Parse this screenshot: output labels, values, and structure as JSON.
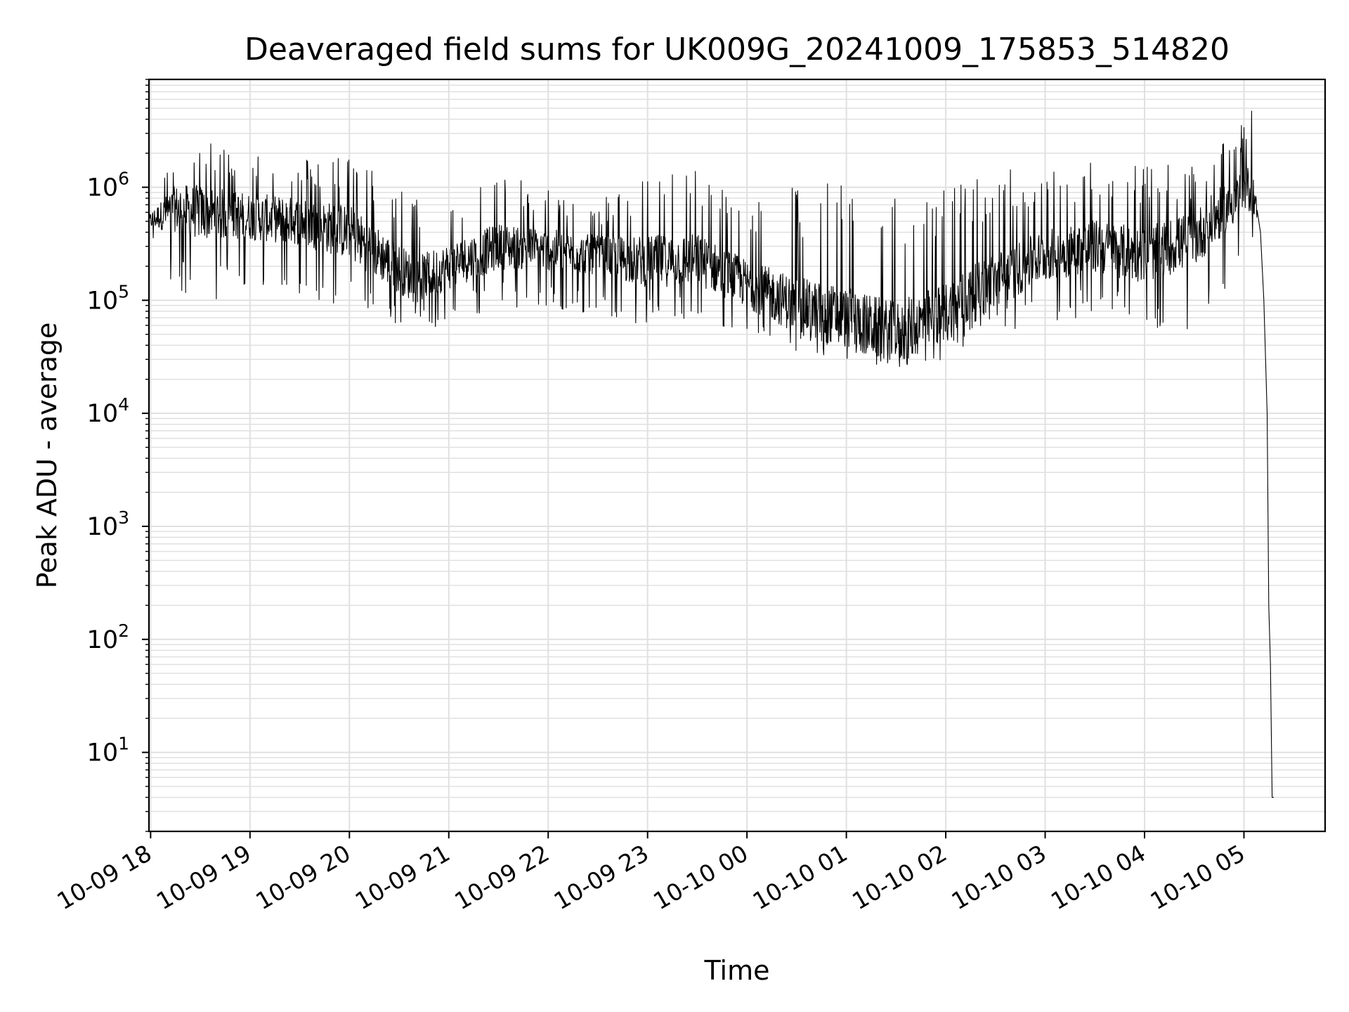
{
  "chart_data": {
    "type": "line",
    "title": "Deaveraged field sums for UK009G_20241009_175853_514820",
    "xlabel": "Time",
    "ylabel": "Peak ADU - average",
    "yscale": "log",
    "ylim": [
      2,
      9000000
    ],
    "xlim": [
      "2024-10-09T17:59:00",
      "2024-10-10T05:49:00"
    ],
    "grid": "on (major and minor)",
    "line_color": "#000000",
    "grid_color": "#e0e0e0",
    "x_ticks": [
      {
        "time": "2024-10-09T18:00:00",
        "label": "10-09 18"
      },
      {
        "time": "2024-10-09T19:00:00",
        "label": "10-09 19"
      },
      {
        "time": "2024-10-09T20:00:00",
        "label": "10-09 20"
      },
      {
        "time": "2024-10-09T21:00:00",
        "label": "10-09 21"
      },
      {
        "time": "2024-10-09T22:00:00",
        "label": "10-09 22"
      },
      {
        "time": "2024-10-09T23:00:00",
        "label": "10-09 23"
      },
      {
        "time": "2024-10-10T00:00:00",
        "label": "10-10 00"
      },
      {
        "time": "2024-10-10T01:00:00",
        "label": "10-10 01"
      },
      {
        "time": "2024-10-10T02:00:00",
        "label": "10-10 02"
      },
      {
        "time": "2024-10-10T03:00:00",
        "label": "10-10 03"
      },
      {
        "time": "2024-10-10T04:00:00",
        "label": "10-10 04"
      },
      {
        "time": "2024-10-10T05:00:00",
        "label": "10-10 05"
      }
    ],
    "y_ticks": [
      {
        "value": 10,
        "base": "10",
        "exp": "1"
      },
      {
        "value": 100,
        "base": "10",
        "exp": "2"
      },
      {
        "value": 1000,
        "base": "10",
        "exp": "3"
      },
      {
        "value": 10000,
        "base": "10",
        "exp": "4"
      },
      {
        "value": 100000,
        "base": "10",
        "exp": "5"
      },
      {
        "value": 1000000,
        "base": "10",
        "exp": "6"
      }
    ],
    "series": [
      {
        "style": "noisy trace (local median with spikes up to highs and dips down to lows)",
        "points": [
          {
            "x": "2024-10-09T17:59:00",
            "median": 500000,
            "high": 900000,
            "low": 380000
          },
          {
            "x": "2024-10-09T18:15:00",
            "median": 650000,
            "high": 2000000,
            "low": 120000
          },
          {
            "x": "2024-10-09T18:30:00",
            "median": 600000,
            "high": 2500000,
            "low": 90000
          },
          {
            "x": "2024-10-09T19:00:00",
            "median": 550000,
            "high": 2200000,
            "low": 130000
          },
          {
            "x": "2024-10-09T19:30:00",
            "median": 500000,
            "high": 1800000,
            "low": 100000
          },
          {
            "x": "2024-10-09T20:00:00",
            "median": 400000,
            "high": 2000000,
            "low": 70000
          },
          {
            "x": "2024-10-09T20:40:00",
            "median": 150000,
            "high": 800000,
            "low": 45000
          },
          {
            "x": "2024-10-09T21:00:00",
            "median": 200000,
            "high": 1000000,
            "low": 60000
          },
          {
            "x": "2024-10-09T21:30:00",
            "median": 300000,
            "high": 1300000,
            "low": 80000
          },
          {
            "x": "2024-10-09T22:00:00",
            "median": 280000,
            "high": 1000000,
            "low": 80000
          },
          {
            "x": "2024-10-09T22:30:00",
            "median": 250000,
            "high": 750000,
            "low": 70000
          },
          {
            "x": "2024-10-09T23:00:00",
            "median": 220000,
            "high": 1400000,
            "low": 60000
          },
          {
            "x": "2024-10-09T23:30:00",
            "median": 230000,
            "high": 1500000,
            "low": 65000
          },
          {
            "x": "2024-10-10T00:00:00",
            "median": 140000,
            "high": 900000,
            "low": 50000
          },
          {
            "x": "2024-10-10T00:30:00",
            "median": 90000,
            "high": 1100000,
            "low": 35000
          },
          {
            "x": "2024-10-10T01:00:00",
            "median": 70000,
            "high": 1200000,
            "low": 30000
          },
          {
            "x": "2024-10-10T01:30:00",
            "median": 50000,
            "high": 1200000,
            "low": 25000
          },
          {
            "x": "2024-10-10T02:00:00",
            "median": 80000,
            "high": 1100000,
            "low": 30000
          },
          {
            "x": "2024-10-10T02:30:00",
            "median": 150000,
            "high": 1500000,
            "low": 50000
          },
          {
            "x": "2024-10-10T03:00:00",
            "median": 250000,
            "high": 1400000,
            "low": 60000
          },
          {
            "x": "2024-10-10T03:30:00",
            "median": 300000,
            "high": 1800000,
            "low": 70000
          },
          {
            "x": "2024-10-10T04:00:00",
            "median": 250000,
            "high": 1700000,
            "low": 60000
          },
          {
            "x": "2024-10-10T04:30:00",
            "median": 350000,
            "high": 1500000,
            "low": 50000
          },
          {
            "x": "2024-10-10T04:55:00",
            "median": 800000,
            "high": 3000000,
            "low": 150000
          },
          {
            "x": "2024-10-10T05:05:00",
            "median": 1000000,
            "high": 5000000,
            "low": 300000
          },
          {
            "x": "2024-10-10T05:10:00",
            "median": 400000,
            "high": 400000,
            "low": 400000
          },
          {
            "x": "2024-10-10T05:12:00",
            "median": 100000,
            "high": 100000,
            "low": 100000
          },
          {
            "x": "2024-10-10T05:14:00",
            "median": 10000,
            "high": 10000,
            "low": 10000
          },
          {
            "x": "2024-10-10T05:15:00",
            "median": 200,
            "high": 200,
            "low": 200
          },
          {
            "x": "2024-10-10T05:16:00",
            "median": 60,
            "high": 60,
            "low": 60
          },
          {
            "x": "2024-10-10T05:17:00",
            "median": 4,
            "high": 4,
            "low": 4
          },
          {
            "x": "2024-10-10T05:18:00",
            "median": 4,
            "high": 4,
            "low": 4
          }
        ]
      }
    ]
  }
}
